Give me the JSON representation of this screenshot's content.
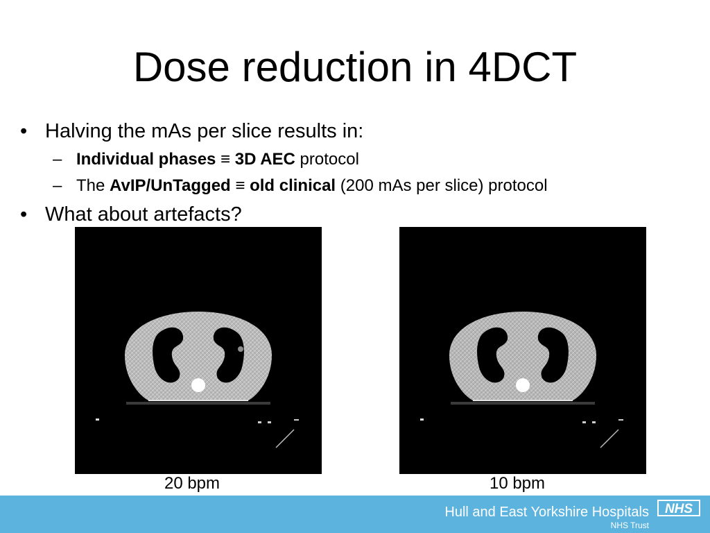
{
  "slide": {
    "title": "Dose reduction in 4DCT",
    "bullets": [
      {
        "marker": "•",
        "text": "Halving the mAs per slice results in:",
        "subbullets": [
          {
            "marker": "–",
            "parts": [
              {
                "text": "Individual phases",
                "bold": true
              },
              {
                "text": " ≡ ",
                "bold": false
              },
              {
                "text": "3D AEC",
                "bold": true
              },
              {
                "text": " protocol",
                "bold": false
              }
            ]
          },
          {
            "marker": "–",
            "parts": [
              {
                "text": "The ",
                "bold": false
              },
              {
                "text": "AvIP/UnTagged",
                "bold": true
              },
              {
                "text": " ≡ ",
                "bold": false
              },
              {
                "text": "old clinical",
                "bold": true
              },
              {
                "text": " (200 mAs per slice) protocol",
                "bold": false
              }
            ]
          }
        ]
      },
      {
        "marker": "•",
        "text": "What about artefacts?"
      }
    ]
  },
  "images": [
    {
      "name": "ct-image-20bpm",
      "caption": "20 bpm"
    },
    {
      "name": "ct-image-10bpm",
      "caption": "10 bpm"
    }
  ],
  "footer": {
    "organization": "Hull and East Yorkshire Hospitals",
    "suborg": "NHS Trust",
    "logo_text": "NHS",
    "bar_color": "#5cb3de",
    "logo_color": "#ffffff"
  }
}
